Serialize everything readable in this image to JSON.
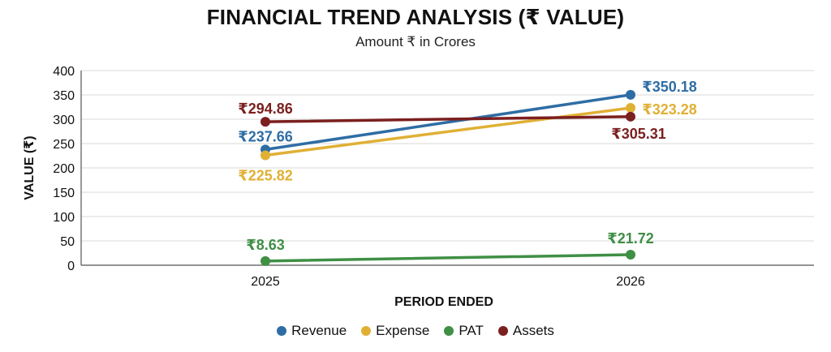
{
  "chart_data": {
    "type": "line",
    "title": "FINANCIAL TREND ANALYSIS (₹ VALUE)",
    "subtitle": "Amount ₹ in Crores",
    "xlabel": "PERIOD ENDED",
    "ylabel": "VALUE (₹)",
    "categories": [
      "2025",
      "2026"
    ],
    "ylim": [
      0,
      400
    ],
    "yticks": [
      0,
      50,
      100,
      150,
      200,
      250,
      300,
      350,
      400
    ],
    "grid": true,
    "legend_position": "bottom",
    "series": [
      {
        "name": "Revenue",
        "color": "#2e6da4",
        "values": [
          237.66,
          350.18
        ],
        "labels": [
          "₹237.66",
          "₹350.18"
        ]
      },
      {
        "name": "Expense",
        "color": "#e0b035",
        "values": [
          225.82,
          323.28
        ],
        "labels": [
          "₹225.82",
          "₹323.28"
        ]
      },
      {
        "name": "PAT",
        "color": "#3f8f45",
        "values": [
          8.63,
          21.72
        ],
        "labels": [
          "₹8.63",
          "₹21.72"
        ]
      },
      {
        "name": "Assets",
        "color": "#7b1f1f",
        "values": [
          294.86,
          305.31
        ],
        "labels": [
          "₹294.86",
          "₹305.31"
        ]
      }
    ]
  }
}
